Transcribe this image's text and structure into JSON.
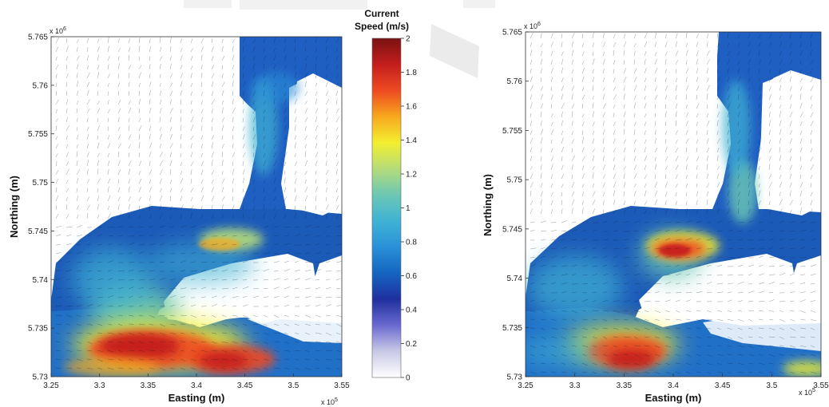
{
  "chart_data": [
    {
      "type": "heatmap",
      "xlabel": "Easting (m)",
      "ylabel": "Northing (m)",
      "x_multiplier": "x 10",
      "x_exponent": "5",
      "y_multiplier": "x 10",
      "y_exponent": "6",
      "xlim": [
        3.25,
        3.55
      ],
      "ylim": [
        5.73,
        5.765
      ],
      "xticks": [
        "3.25",
        "3.3",
        "3.35",
        "3.4",
        "3.45",
        "3.5",
        "3.55"
      ],
      "yticks": [
        "5.73",
        "5.735",
        "5.74",
        "5.745",
        "5.75",
        "5.755",
        "5.76",
        "5.765"
      ],
      "hotspots": [
        {
          "x": 3.36,
          "y": 5.733,
          "speed": 1.9
        },
        {
          "x": 3.43,
          "y": 5.7315,
          "speed": 1.8
        },
        {
          "x": 3.41,
          "y": 5.744,
          "speed": 1.4
        }
      ]
    },
    {
      "type": "heatmap",
      "xlabel": "Easting (m)",
      "ylabel": "Northing (m)",
      "x_multiplier": "x 10",
      "x_exponent": "5",
      "y_multiplier": "x 10",
      "y_exponent": "6",
      "xlim": [
        3.25,
        3.55
      ],
      "ylim": [
        5.73,
        5.765
      ],
      "xticks": [
        "3.25",
        "3.3",
        "3.35",
        "3.4",
        "3.45",
        "3.5",
        "3.55"
      ],
      "yticks": [
        "5.73",
        "5.735",
        "5.74",
        "5.745",
        "5.75",
        "5.755",
        "5.76",
        "5.765"
      ],
      "hotspots": [
        {
          "x": 3.36,
          "y": 5.732,
          "speed": 1.8
        },
        {
          "x": 3.405,
          "y": 5.7435,
          "speed": 1.8
        },
        {
          "x": 3.53,
          "y": 5.731,
          "speed": 1.4
        }
      ]
    }
  ],
  "colorbar": {
    "title_line1": "Current",
    "title_line2": "Speed (m/s)",
    "min": 0,
    "max": 2,
    "ticks": [
      "0",
      "0.2",
      "0.4",
      "0.6",
      "0.8",
      "1",
      "1.2",
      "1.4",
      "1.6",
      "1.8",
      "2"
    ],
    "colors": [
      "#ffffff",
      "#c9c9e6",
      "#6a6ad0",
      "#1f2f9e",
      "#1565c0",
      "#2a90d8",
      "#3fb3d4",
      "#6cc7b4",
      "#b5dc7a",
      "#f3ef2f",
      "#f7a81e",
      "#ee4a22",
      "#c41d1d",
      "#7a1212"
    ]
  },
  "colors": {
    "land": "#ffffff",
    "water_low": "#1f4fb0",
    "water_mid": "#2a90d8",
    "arrow": "#0c1a33"
  }
}
